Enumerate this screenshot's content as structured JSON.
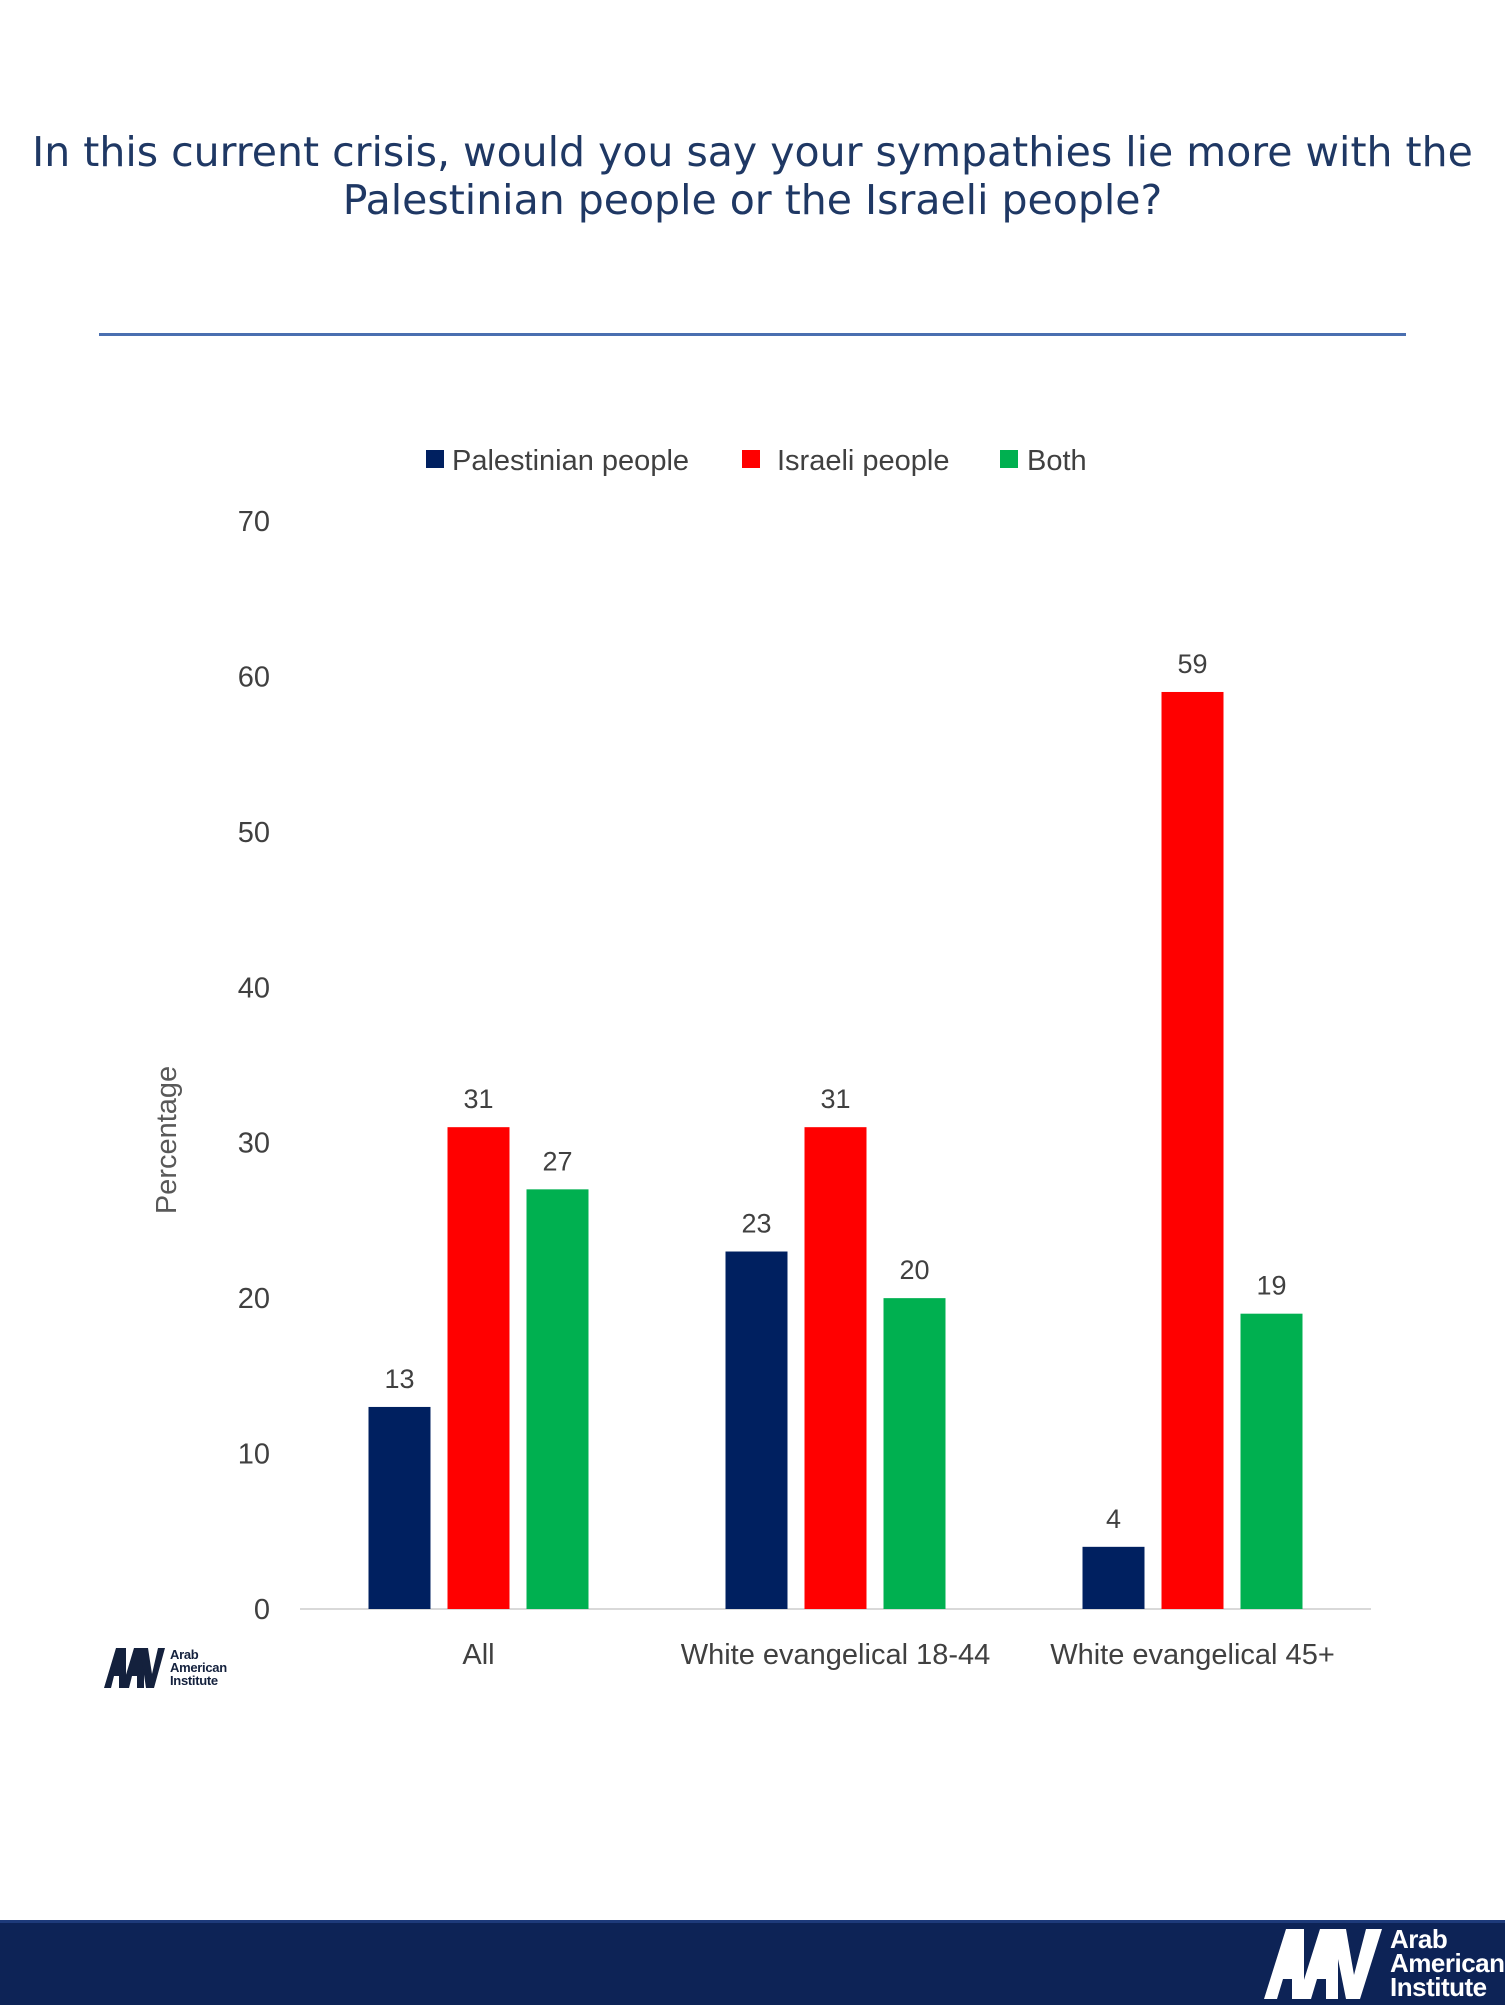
{
  "title": "In this current crisis, would you say your sympathies lie more with the Palestinian people or the Israeli people?",
  "logo": {
    "icon": "aai-logo-icon",
    "lines": [
      "Arab",
      "American",
      "Institute"
    ]
  },
  "chart_data": {
    "type": "bar",
    "title": "In this current crisis, would you say your sympathies lie more with the Palestinian people or the Israeli people?",
    "xlabel": "",
    "ylabel": "Percentage",
    "ylim": [
      0,
      70
    ],
    "yticks": [
      0,
      10,
      20,
      30,
      40,
      50,
      60,
      70
    ],
    "grid": false,
    "legend_position": "top",
    "categories": [
      "All",
      "White evangelical 18-44",
      "White evangelical 45+"
    ],
    "series": [
      {
        "name": "Palestinian people",
        "values": [
          13,
          23,
          4
        ],
        "color": "#002060"
      },
      {
        "name": "Israeli people",
        "values": [
          31,
          31,
          59
        ],
        "color": "#ff0000"
      },
      {
        "name": "Both",
        "values": [
          27,
          20,
          19
        ],
        "color": "#00b050"
      }
    ]
  },
  "colors": {
    "title": "#1f3864",
    "rule": "#4a6fb0",
    "footer": "#0d2356",
    "axis_text": "#404040"
  }
}
